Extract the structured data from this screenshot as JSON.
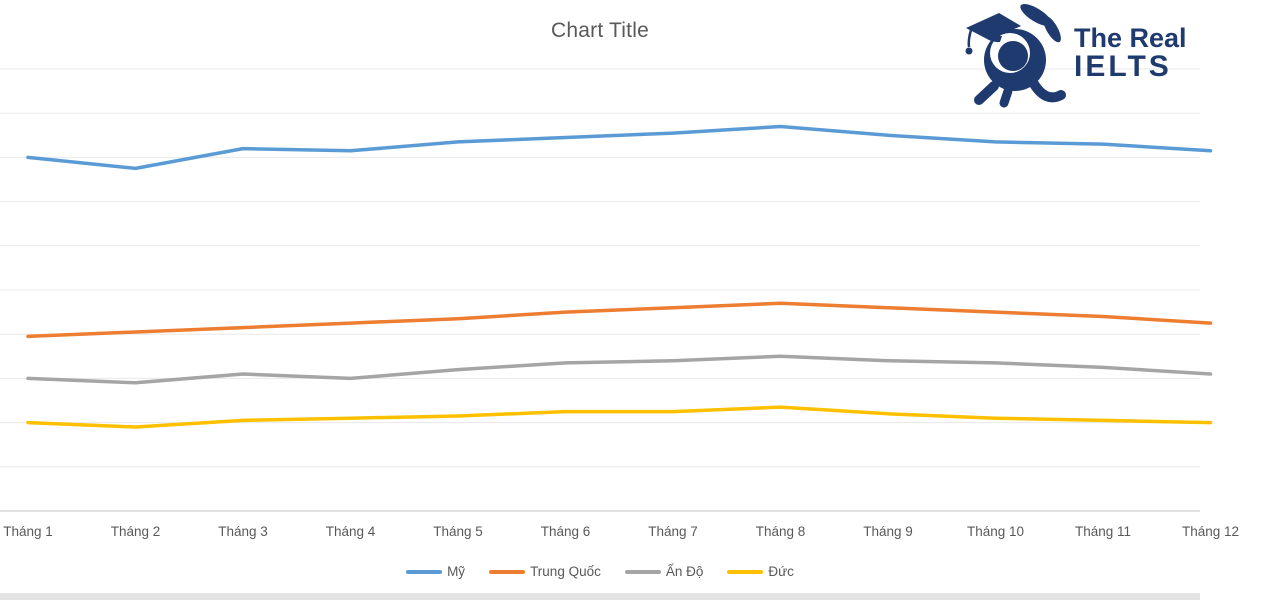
{
  "page": {
    "background_color": "#ffffff",
    "bottom_bar_color": "#e3e3e3"
  },
  "logo": {
    "name": "The Real IELTS",
    "line1": "The Real",
    "line2": "IELTS",
    "color": "#1e3a6e",
    "icon": "graduate-rabbit-mascot-icon"
  },
  "chart_data": {
    "type": "line",
    "title": "Chart Title",
    "title_color": "#595959",
    "categories": [
      "Tháng 1",
      "Tháng 2",
      "Tháng 3",
      "Tháng 4",
      "Tháng 5",
      "Tháng 6",
      "Tháng 7",
      "Tháng 8",
      "Tháng 9",
      "Tháng 10",
      "Tháng 11",
      "Tháng 12"
    ],
    "series": [
      {
        "name": "Mỹ",
        "color": "#5B9BD5",
        "values": [
          80,
          77.5,
          82,
          81.5,
          83.5,
          84.5,
          85.5,
          87,
          85,
          83.5,
          83,
          81.5
        ]
      },
      {
        "name": "Trung Quốc",
        "color": "#ED7D31",
        "values": [
          39.5,
          40.5,
          41.5,
          42.5,
          43.5,
          45,
          46,
          47,
          46,
          45,
          44,
          42.5
        ]
      },
      {
        "name": "Ấn Độ",
        "color": "#A5A5A5",
        "values": [
          30,
          29,
          31,
          30,
          32,
          33.5,
          34,
          35,
          34,
          33.5,
          32.5,
          31
        ]
      },
      {
        "name": "Đức",
        "color": "#FFC000",
        "values": [
          20,
          19,
          20.5,
          21,
          21.5,
          22.5,
          22.5,
          23.5,
          22,
          21,
          20.5,
          20
        ]
      }
    ],
    "ylim": [
      0,
      100
    ],
    "y_gridline_interval": 10,
    "y_axis_labels_visible": false,
    "grid": true,
    "legend_position": "bottom",
    "label_color": "#595959",
    "gridline_color": "#e8e8e8",
    "axisline_color": "#c6c6c6"
  }
}
